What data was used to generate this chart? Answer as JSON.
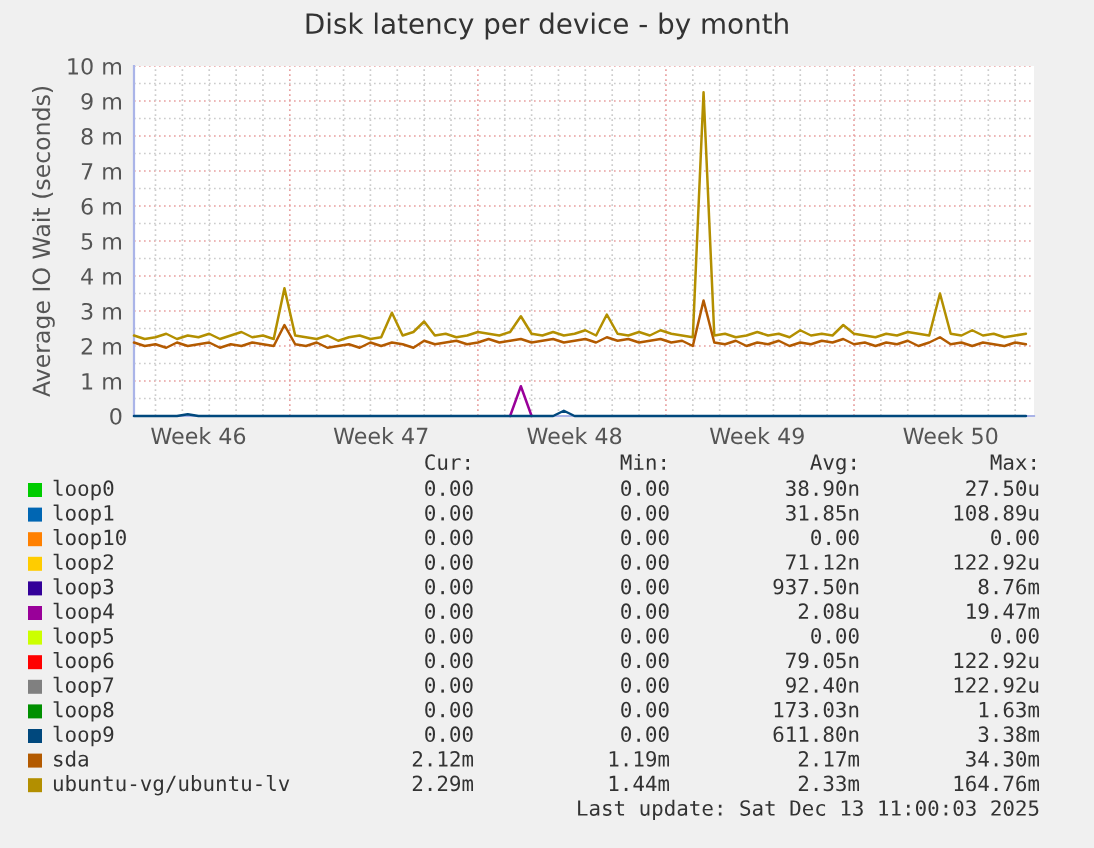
{
  "chart_data": {
    "type": "line",
    "title": "Disk latency per device - by month",
    "ylabel": "Average IO Wait (seconds)",
    "categories": [
      null,
      null,
      null,
      null,
      null,
      null,
      "Week 46",
      null,
      null,
      null,
      null,
      null,
      null,
      null,
      null,
      null,
      null,
      null,
      null,
      null,
      null,
      null,
      null,
      "Week 47",
      null,
      null,
      null,
      null,
      null,
      null,
      null,
      null,
      null,
      null,
      null,
      null,
      null,
      null,
      null,
      null,
      null,
      "Week 48",
      null,
      null,
      null,
      null,
      null,
      null,
      null,
      null,
      null,
      null,
      null,
      null,
      null,
      null,
      null,
      null,
      "Week 49",
      null,
      null,
      null,
      null,
      null,
      null,
      null,
      null,
      null,
      null,
      null,
      null,
      null,
      null,
      null,
      null,
      null,
      "Week 50",
      null,
      null,
      null,
      null,
      null,
      null,
      null
    ],
    "ylim": [
      0,
      10
    ],
    "yticks": [
      {
        "value": 0,
        "label": "0"
      },
      {
        "value": 1,
        "label": "1 m"
      },
      {
        "value": 2,
        "label": "2 m"
      },
      {
        "value": 3,
        "label": "3 m"
      },
      {
        "value": 4,
        "label": "4 m"
      },
      {
        "value": 5,
        "label": "5 m"
      },
      {
        "value": 6,
        "label": "6 m"
      },
      {
        "value": 7,
        "label": "7 m"
      },
      {
        "value": 8,
        "label": "8 m"
      },
      {
        "value": 9,
        "label": "9 m"
      },
      {
        "value": 10,
        "label": "10 m"
      }
    ],
    "grid": true,
    "legend": "bottom",
    "marker": "none",
    "line_style": "solid",
    "series": [
      {
        "name": "loop0",
        "color": "#00cc00",
        "values": [
          null,
          null,
          null,
          null,
          null,
          null,
          null,
          null,
          null,
          null,
          null,
          null,
          null,
          null,
          null,
          null,
          null,
          null,
          null,
          null,
          null,
          null,
          null,
          null,
          null,
          null,
          null,
          null,
          null,
          null,
          null,
          null,
          null,
          null,
          null,
          null,
          null,
          null,
          null,
          null,
          null,
          null,
          null,
          null,
          null,
          null,
          null,
          null,
          null,
          null,
          null,
          null,
          null,
          null,
          null,
          null,
          null,
          null,
          null,
          null,
          null,
          null,
          null,
          null,
          null,
          null,
          null,
          null,
          null,
          null,
          null,
          null,
          null,
          null,
          null,
          null,
          null,
          null,
          null,
          null,
          null,
          null,
          null,
          null
        ]
      },
      {
        "name": "loop1",
        "color": "#0066b3",
        "values": [
          null,
          null,
          null,
          null,
          null,
          null,
          null,
          null,
          null,
          null,
          null,
          null,
          null,
          null,
          null,
          null,
          null,
          null,
          null,
          null,
          null,
          null,
          null,
          null,
          null,
          null,
          null,
          null,
          null,
          null,
          null,
          null,
          null,
          null,
          null,
          null,
          null,
          null,
          null,
          null,
          null,
          null,
          null,
          null,
          null,
          null,
          null,
          null,
          null,
          null,
          null,
          null,
          null,
          null,
          null,
          null,
          null,
          null,
          null,
          null,
          null,
          null,
          null,
          null,
          null,
          null,
          null,
          null,
          null,
          null,
          null,
          null,
          null,
          null,
          null,
          null,
          null,
          null,
          null,
          null,
          null,
          null,
          null,
          null
        ]
      },
      {
        "name": "loop10",
        "color": "#ff8000",
        "values": [
          null,
          null,
          null,
          null,
          null,
          null,
          null,
          null,
          null,
          null,
          null,
          null,
          null,
          null,
          null,
          null,
          null,
          null,
          null,
          null,
          null,
          null,
          null,
          null,
          null,
          null,
          null,
          null,
          null,
          null,
          null,
          null,
          null,
          null,
          null,
          null,
          null,
          null,
          null,
          null,
          null,
          null,
          null,
          null,
          null,
          null,
          null,
          null,
          null,
          null,
          null,
          null,
          null,
          null,
          null,
          null,
          null,
          null,
          null,
          null,
          null,
          null,
          null,
          null,
          null,
          null,
          null,
          null,
          null,
          null,
          null,
          null,
          null,
          null,
          null,
          null,
          null,
          null,
          null,
          null,
          null,
          null,
          null,
          null
        ]
      },
      {
        "name": "loop2",
        "color": "#ffcc00",
        "values": [
          null,
          null,
          null,
          null,
          null,
          null,
          null,
          null,
          null,
          null,
          null,
          null,
          null,
          null,
          null,
          null,
          null,
          null,
          null,
          null,
          null,
          null,
          null,
          null,
          null,
          null,
          null,
          null,
          null,
          null,
          null,
          null,
          null,
          null,
          null,
          null,
          null,
          null,
          null,
          null,
          null,
          null,
          null,
          null,
          null,
          null,
          null,
          null,
          null,
          null,
          null,
          null,
          null,
          null,
          null,
          null,
          null,
          null,
          null,
          null,
          null,
          null,
          null,
          null,
          null,
          null,
          null,
          null,
          null,
          null,
          null,
          null,
          null,
          null,
          null,
          null,
          null,
          null,
          null,
          null,
          null,
          null,
          null,
          null
        ]
      },
      {
        "name": "loop3",
        "color": "#330099",
        "values": [
          null,
          null,
          null,
          null,
          null,
          null,
          null,
          null,
          null,
          null,
          null,
          null,
          null,
          null,
          null,
          null,
          null,
          null,
          null,
          null,
          null,
          null,
          null,
          null,
          null,
          null,
          null,
          null,
          null,
          null,
          null,
          null,
          null,
          null,
          null,
          null,
          null,
          null,
          null,
          null,
          null,
          null,
          null,
          null,
          null,
          null,
          null,
          null,
          null,
          null,
          null,
          null,
          null,
          null,
          null,
          null,
          null,
          null,
          null,
          null,
          null,
          null,
          null,
          null,
          null,
          null,
          null,
          null,
          null,
          null,
          null,
          null,
          null,
          null,
          null,
          null,
          null,
          null,
          null,
          null,
          null,
          null,
          null,
          null
        ]
      },
      {
        "name": "loop4",
        "color": "#990099",
        "values": [
          null,
          null,
          null,
          null,
          null,
          null,
          null,
          null,
          null,
          null,
          null,
          null,
          null,
          null,
          null,
          null,
          null,
          null,
          null,
          null,
          null,
          null,
          null,
          null,
          null,
          null,
          null,
          null,
          null,
          null,
          null,
          null,
          null,
          null,
          null,
          0,
          0.85,
          0,
          null,
          null,
          null,
          null,
          null,
          null,
          null,
          null,
          null,
          null,
          null,
          null,
          null,
          null,
          null,
          null,
          null,
          null,
          null,
          null,
          null,
          null,
          null,
          null,
          null,
          null,
          null,
          null,
          null,
          null,
          null,
          null,
          null,
          null,
          null,
          null,
          null,
          null,
          null,
          null,
          null,
          null,
          null,
          null,
          null,
          null
        ]
      },
      {
        "name": "loop5",
        "color": "#ccff00",
        "values": [
          null,
          null,
          null,
          null,
          null,
          null,
          null,
          null,
          null,
          null,
          null,
          null,
          null,
          null,
          null,
          null,
          null,
          null,
          null,
          null,
          null,
          null,
          null,
          null,
          null,
          null,
          null,
          null,
          null,
          null,
          null,
          null,
          null,
          null,
          null,
          null,
          null,
          null,
          null,
          null,
          null,
          null,
          null,
          null,
          null,
          null,
          null,
          null,
          null,
          null,
          null,
          null,
          null,
          null,
          null,
          null,
          null,
          null,
          null,
          null,
          null,
          null,
          null,
          null,
          null,
          null,
          null,
          null,
          null,
          null,
          null,
          null,
          null,
          null,
          null,
          null,
          null,
          null,
          null,
          null,
          null,
          null,
          null,
          null
        ]
      },
      {
        "name": "loop6",
        "color": "#ff0000",
        "values": [
          null,
          null,
          null,
          null,
          null,
          null,
          null,
          null,
          null,
          null,
          null,
          null,
          null,
          null,
          null,
          null,
          null,
          null,
          null,
          null,
          null,
          null,
          null,
          null,
          null,
          null,
          null,
          null,
          null,
          null,
          null,
          null,
          null,
          null,
          null,
          null,
          null,
          null,
          null,
          null,
          null,
          null,
          null,
          null,
          null,
          null,
          null,
          null,
          null,
          null,
          null,
          null,
          null,
          null,
          null,
          null,
          null,
          null,
          null,
          null,
          null,
          null,
          null,
          null,
          null,
          null,
          null,
          null,
          null,
          null,
          null,
          null,
          null,
          null,
          null,
          null,
          null,
          null,
          null,
          null,
          null,
          null,
          null,
          null
        ]
      },
      {
        "name": "loop7",
        "color": "#808080",
        "values": [
          null,
          null,
          null,
          null,
          null,
          null,
          null,
          null,
          null,
          null,
          null,
          null,
          null,
          null,
          null,
          null,
          null,
          null,
          null,
          null,
          null,
          null,
          null,
          null,
          null,
          null,
          null,
          null,
          null,
          null,
          null,
          null,
          null,
          null,
          null,
          null,
          null,
          null,
          null,
          null,
          null,
          null,
          null,
          null,
          null,
          null,
          null,
          null,
          null,
          null,
          null,
          null,
          null,
          null,
          null,
          null,
          null,
          null,
          null,
          null,
          null,
          null,
          null,
          null,
          null,
          null,
          null,
          null,
          null,
          null,
          null,
          null,
          null,
          null,
          null,
          null,
          null,
          null,
          null,
          null,
          null,
          null,
          null,
          null
        ]
      },
      {
        "name": "loop8",
        "color": "#008f00",
        "values": [
          null,
          null,
          null,
          null,
          null,
          null,
          null,
          null,
          null,
          null,
          null,
          null,
          null,
          null,
          null,
          null,
          null,
          null,
          null,
          null,
          null,
          null,
          null,
          null,
          null,
          null,
          null,
          null,
          null,
          null,
          null,
          null,
          null,
          null,
          null,
          null,
          null,
          null,
          null,
          null,
          null,
          null,
          null,
          null,
          null,
          null,
          null,
          null,
          null,
          null,
          null,
          null,
          null,
          null,
          null,
          null,
          null,
          null,
          null,
          null,
          null,
          null,
          null,
          null,
          null,
          null,
          null,
          null,
          null,
          null,
          null,
          null,
          null,
          null,
          null,
          null,
          null,
          null,
          null,
          null,
          null,
          null,
          null,
          null
        ]
      },
      {
        "name": "loop9",
        "color": "#00487d",
        "values": [
          0,
          0,
          0,
          0,
          0,
          0.05,
          0,
          0,
          0,
          0,
          0,
          0,
          0,
          0,
          0,
          0,
          0,
          0,
          0,
          0,
          0,
          0,
          0,
          0,
          0,
          0,
          0,
          0,
          0,
          0,
          0,
          0,
          0,
          0,
          0,
          null,
          null,
          null,
          0,
          0,
          0.15,
          0,
          0,
          0,
          0,
          0,
          0,
          0,
          0,
          0,
          0,
          0,
          0,
          0,
          0,
          0,
          0,
          0,
          0,
          0,
          0,
          0,
          0,
          0,
          0,
          0,
          0,
          0,
          0,
          0,
          0,
          0,
          0,
          0,
          0,
          0,
          0,
          0,
          0,
          0,
          0,
          0,
          0,
          0
        ]
      },
      {
        "name": "sda",
        "color": "#b35a00",
        "values": [
          2.1,
          2.0,
          2.05,
          1.95,
          2.1,
          2.0,
          2.05,
          2.1,
          1.95,
          2.05,
          2.0,
          2.1,
          2.05,
          2.0,
          2.6,
          2.05,
          2.0,
          2.1,
          1.95,
          2.0,
          2.05,
          1.95,
          2.1,
          2.0,
          2.1,
          2.05,
          1.95,
          2.15,
          2.05,
          2.1,
          2.15,
          2.05,
          2.1,
          2.2,
          2.1,
          2.15,
          2.2,
          2.1,
          2.15,
          2.2,
          2.1,
          2.15,
          2.2,
          2.1,
          2.25,
          2.15,
          2.2,
          2.1,
          2.15,
          2.2,
          2.1,
          2.15,
          2.0,
          3.3,
          2.1,
          2.05,
          2.15,
          2.0,
          2.1,
          2.05,
          2.15,
          2.0,
          2.1,
          2.05,
          2.15,
          2.1,
          2.2,
          2.05,
          2.1,
          2.0,
          2.1,
          2.05,
          2.15,
          2.0,
          2.1,
          2.25,
          2.05,
          2.1,
          2.0,
          2.1,
          2.05,
          2.0,
          2.1,
          2.05
        ]
      },
      {
        "name": "ubuntu-vg/ubuntu-lv",
        "color": "#b38f00",
        "values": [
          2.3,
          2.2,
          2.25,
          2.35,
          2.2,
          2.3,
          2.25,
          2.35,
          2.2,
          2.3,
          2.4,
          2.25,
          2.3,
          2.2,
          3.65,
          2.3,
          2.25,
          2.2,
          2.3,
          2.15,
          2.25,
          2.3,
          2.2,
          2.25,
          2.95,
          2.3,
          2.4,
          2.7,
          2.3,
          2.35,
          2.25,
          2.3,
          2.4,
          2.35,
          2.3,
          2.4,
          2.85,
          2.35,
          2.3,
          2.4,
          2.3,
          2.35,
          2.45,
          2.3,
          2.9,
          2.35,
          2.3,
          2.4,
          2.3,
          2.45,
          2.35,
          2.3,
          2.25,
          9.25,
          2.3,
          2.35,
          2.25,
          2.3,
          2.4,
          2.3,
          2.35,
          2.25,
          2.45,
          2.3,
          2.35,
          2.3,
          2.6,
          2.35,
          2.3,
          2.25,
          2.35,
          2.3,
          2.4,
          2.35,
          2.3,
          3.5,
          2.35,
          2.3,
          2.45,
          2.3,
          2.35,
          2.25,
          2.3,
          2.35
        ]
      }
    ],
    "annotations": [
      "Cur:",
      "Min:",
      "Avg:",
      "Max:",
      "0.00",
      "0.00",
      "38.90n",
      "27.50u",
      "0.00",
      "0.00",
      "31.85n",
      "108.89u",
      "0.00",
      "0.00",
      "0.00",
      "0.00",
      "0.00",
      "0.00",
      "71.12n",
      "122.92u",
      "0.00",
      "0.00",
      "937.50n",
      "8.76m",
      "0.00",
      "0.00",
      "2.08u",
      "19.47m",
      "0.00",
      "0.00",
      "0.00",
      "0.00",
      "0.00",
      "0.00",
      "79.05n",
      "122.92u",
      "0.00",
      "0.00",
      "92.40n",
      "122.92u",
      "0.00",
      "0.00",
      "173.03n",
      "1.63m",
      "0.00",
      "0.00",
      "611.80n",
      "3.38m",
      "2.12m",
      "1.19m",
      "2.17m",
      "34.30m",
      "2.29m",
      "1.44m",
      "2.33m",
      "164.76m",
      "Last update: Sat Dec 13 11:00:03 2025"
    ]
  }
}
